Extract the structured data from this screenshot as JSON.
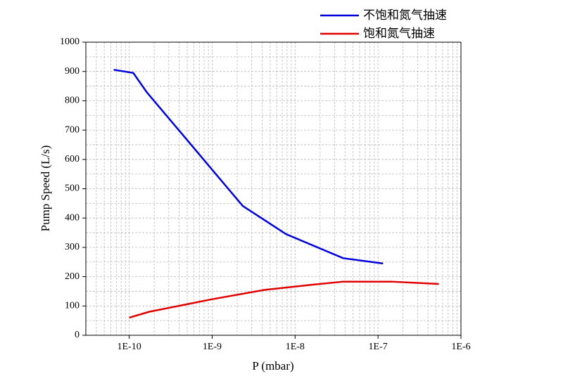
{
  "chart_data": {
    "type": "line",
    "x_label": "P (mbar)",
    "y_label": "Pump Speed (L/s)",
    "xlog": true,
    "grid": true,
    "minor_grid": true,
    "legend": "top-right",
    "xlim": [
      3e-11,
      1e-06
    ],
    "ylim": [
      0,
      1000
    ],
    "xticks": [
      {
        "value": 1e-10,
        "label": "1E-10"
      },
      {
        "value": 1e-09,
        "label": "1E-9"
      },
      {
        "value": 1e-08,
        "label": "1E-8"
      },
      {
        "value": 1e-07,
        "label": "1E-7"
      },
      {
        "value": 1e-06,
        "label": "1E-6"
      }
    ],
    "yticks": [
      0,
      100,
      200,
      300,
      400,
      500,
      600,
      700,
      800,
      900,
      1000
    ],
    "series": [
      {
        "name": "不饱和氮气抽速",
        "color": "#0000dd",
        "x": [
          6.5e-11,
          1.12e-10,
          1.62e-10,
          2.34e-09,
          7.8e-09,
          3.8e-08,
          1.15e-07
        ],
        "values": [
          906,
          895,
          830,
          441,
          345,
          263,
          245
        ]
      },
      {
        "name": "饱和氮气抽速",
        "color": "#e00000",
        "x": [
          1e-10,
          1.73e-10,
          1e-09,
          4.3e-09,
          1.55e-08,
          3.8e-08,
          1.45e-07,
          5.4e-07
        ],
        "values": [
          60,
          80,
          123,
          155,
          172,
          183,
          183,
          175
        ]
      }
    ]
  }
}
